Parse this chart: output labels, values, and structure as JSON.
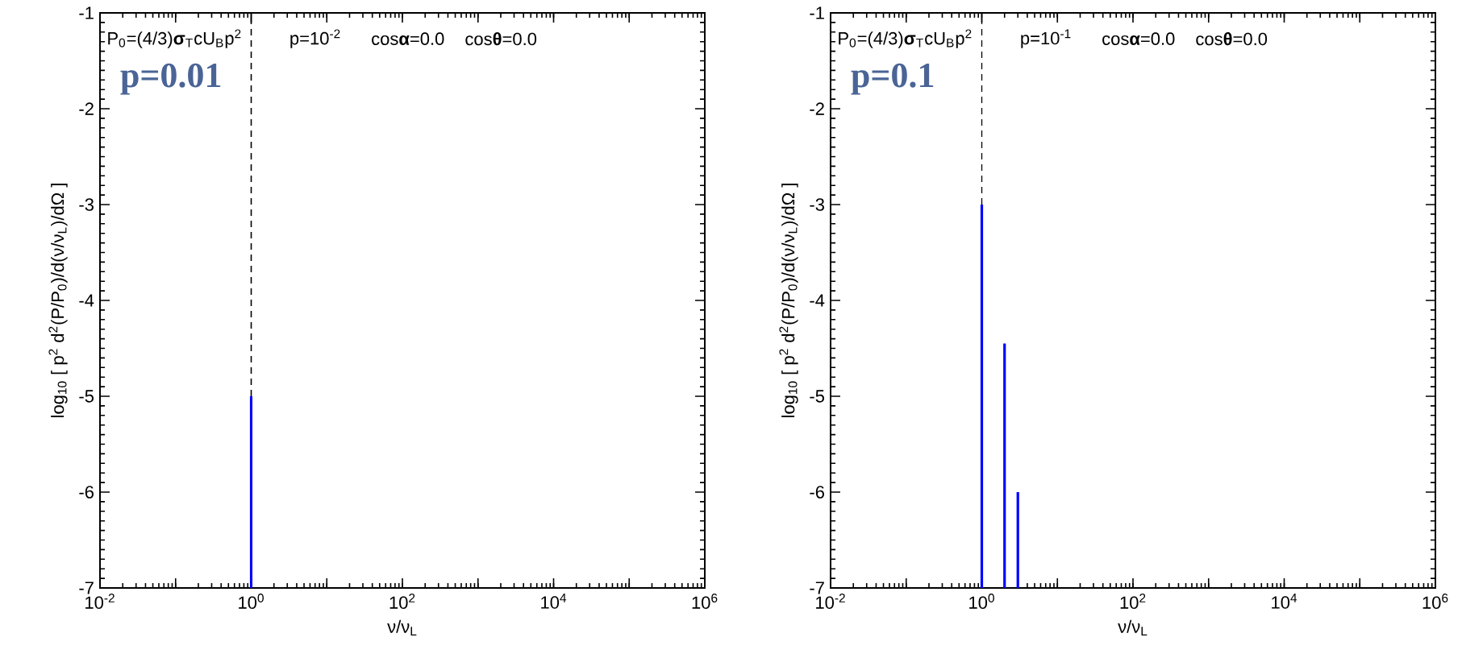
{
  "chart_data": [
    {
      "type": "bar",
      "x": [
        1
      ],
      "base": [
        -7
      ],
      "values": [
        2.0
      ],
      "color": "#0000ff",
      "log": "x",
      "xlim": [
        0.01,
        1000000
      ],
      "xticks": [
        {
          "value": 0.01,
          "label": "10$^{-2}$"
        },
        {
          "value": 0.1,
          "label": null
        },
        {
          "value": 1,
          "label": "10$^{0}$"
        },
        {
          "value": 10,
          "label": null
        },
        {
          "value": 100,
          "label": "10$^{2}$"
        },
        {
          "value": 1000,
          "label": null
        },
        {
          "value": 10000,
          "label": "10$^{4}$"
        },
        {
          "value": 100000,
          "label": null
        },
        {
          "value": 1000000,
          "label": "10$^{6}$"
        }
      ],
      "ylim": [
        -7,
        -1
      ],
      "yticks": [
        -7,
        -6,
        -5,
        -4,
        -3,
        -2,
        -1
      ],
      "xlabel": "ν/ν$_{L}$",
      "ylabel": "log$_{10}$ [ p$^{2}$ d$^{2}$(P/P$_{0}$)/d(ν/ν$_{L}$)/dΩ ]",
      "ref_lines": [
        {
          "axis": "x",
          "value": 1,
          "color": "#000000",
          "line_style": "dashed"
        }
      ],
      "annotations": [
        "P$_{0}$=(4/3)**σ**$_{T}$cU$_{B}$p$^{2}$",
        "p=10$^{-2}$",
        "cos**α**=0.0",
        "cos**θ**=0.0",
        "p=0.01"
      ]
    },
    {
      "type": "bar",
      "x": [
        1,
        2,
        3
      ],
      "base": [
        -7,
        -7,
        -7
      ],
      "values": [
        4.0,
        2.55,
        1.0
      ],
      "color": "#0000ff",
      "log": "x",
      "xlim": [
        0.01,
        1000000
      ],
      "xticks": [
        {
          "value": 0.01,
          "label": "10$^{-2}$"
        },
        {
          "value": 0.1,
          "label": null
        },
        {
          "value": 1,
          "label": "10$^{0}$"
        },
        {
          "value": 10,
          "label": null
        },
        {
          "value": 100,
          "label": "10$^{2}$"
        },
        {
          "value": 1000,
          "label": null
        },
        {
          "value": 10000,
          "label": "10$^{4}$"
        },
        {
          "value": 100000,
          "label": null
        },
        {
          "value": 1000000,
          "label": "10$^{6}$"
        }
      ],
      "ylim": [
        -7,
        -1
      ],
      "yticks": [
        -7,
        -6,
        -5,
        -4,
        -3,
        -2,
        -1
      ],
      "xlabel": "ν/ν$_{L}$",
      "ylabel": "log$_{10}$ [ p$^{2}$ d$^{2}$(P/P$_{0}$)/d(ν/ν$_{L}$)/dΩ ]",
      "ref_lines": [
        {
          "axis": "x",
          "value": 1,
          "color": "#000000",
          "line_style": "dashed"
        }
      ],
      "annotations": [
        "P$_{0}$=(4/3)**σ**$_{T}$cU$_{B}$p$^{2}$",
        "p=10$^{-1}$",
        "cos**α**=0.0",
        "cos**θ**=0.0",
        "p=0.1"
      ]
    }
  ]
}
